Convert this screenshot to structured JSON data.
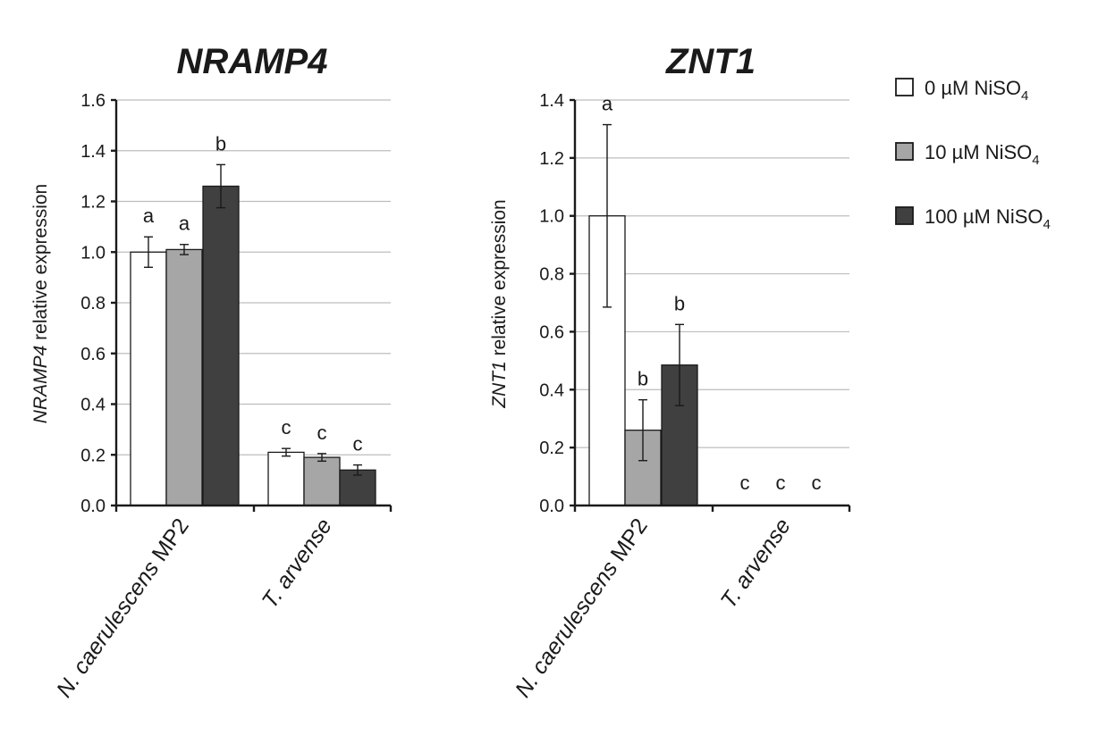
{
  "chart_data": [
    {
      "type": "bar",
      "title": "NRAMP4",
      "ylabel_italic": "NRAMP4",
      "ylabel_rest": " relative expression",
      "ylim": [
        0,
        1.6
      ],
      "yticks": [
        "0.0",
        "0.2",
        "0.4",
        "0.6",
        "0.8",
        "1.0",
        "1.2",
        "1.4",
        "1.6"
      ],
      "categories": [
        {
          "italic": "N. caerulescens",
          "rest": " MP2"
        },
        {
          "italic": "T. arvense",
          "rest": ""
        }
      ],
      "series": [
        {
          "name": "0 µM NiSO4",
          "values": [
            1.0,
            0.21
          ],
          "errors": [
            0.06,
            0.015
          ],
          "letters": [
            "a",
            "c"
          ]
        },
        {
          "name": "10 µM NiSO4",
          "values": [
            1.01,
            0.19
          ],
          "errors": [
            0.02,
            0.015
          ],
          "letters": [
            "a",
            "c"
          ]
        },
        {
          "name": "100 µM NiSO4",
          "values": [
            1.26,
            0.14
          ],
          "errors": [
            0.085,
            0.02
          ],
          "letters": [
            "b",
            "c"
          ]
        }
      ]
    },
    {
      "type": "bar",
      "title": "ZNT1",
      "ylabel_italic": "ZNT1",
      "ylabel_rest": " relative expression",
      "ylim": [
        0,
        1.4
      ],
      "yticks": [
        "0.0",
        "0.2",
        "0.4",
        "0.6",
        "0.8",
        "1.0",
        "1.2",
        "1.4"
      ],
      "categories": [
        {
          "italic": "N. caerulescens",
          "rest": " MP2"
        },
        {
          "italic": "T. arvense",
          "rest": ""
        }
      ],
      "series": [
        {
          "name": "0 µM NiSO4",
          "values": [
            1.0,
            0.0
          ],
          "errors": [
            0.315,
            0
          ],
          "letters": [
            "a",
            "c"
          ]
        },
        {
          "name": "10 µM NiSO4",
          "values": [
            0.26,
            0.0
          ],
          "errors": [
            0.105,
            0
          ],
          "letters": [
            "b",
            "c"
          ]
        },
        {
          "name": "100 µM NiSO4",
          "values": [
            0.485,
            0.0
          ],
          "errors": [
            0.14,
            0
          ],
          "letters": [
            "b",
            "c"
          ]
        }
      ]
    }
  ],
  "legend": {
    "items": [
      {
        "prefix": "0 µM NiSO",
        "sub": "4",
        "color": "#ffffff"
      },
      {
        "prefix": "10 µM NiSO",
        "sub": "4",
        "color": "#a6a6a6"
      },
      {
        "prefix": "100 µM NiSO",
        "sub": "4",
        "color": "#404040"
      }
    ]
  }
}
